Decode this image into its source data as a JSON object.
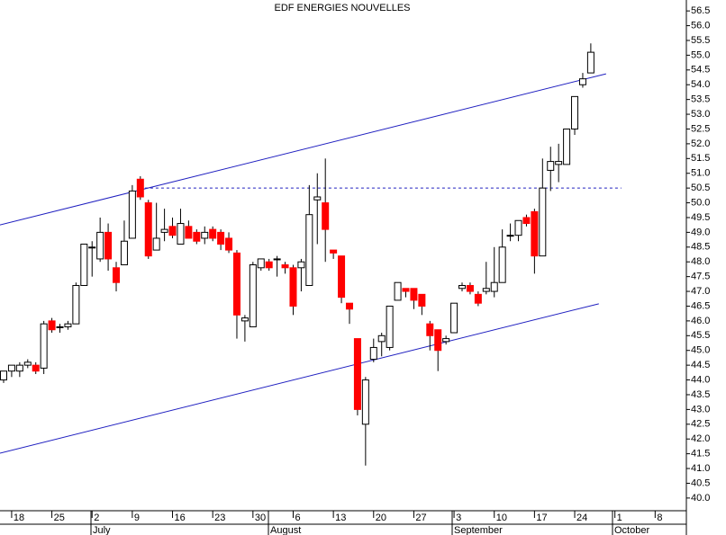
{
  "chart_data": {
    "type": "candlestick",
    "title": "EDF ENERGIES NOUVELLES",
    "categories": [
      null,
      "18",
      null,
      null,
      null,
      null,
      "25",
      null,
      null,
      null,
      null,
      "2",
      null,
      null,
      null,
      null,
      "9",
      null,
      null,
      null,
      null,
      "16",
      null,
      null,
      null,
      null,
      "23",
      null,
      null,
      null,
      null,
      "30",
      null,
      null,
      null,
      null,
      "6",
      null,
      null,
      null,
      null,
      "13",
      null,
      null,
      null,
      null,
      "20",
      null,
      null,
      null,
      null,
      "27",
      null,
      null,
      null,
      null,
      "3",
      null,
      null,
      null,
      null,
      "10",
      null,
      null,
      null,
      null,
      "17",
      null,
      null,
      null,
      null,
      "24",
      null,
      null,
      null,
      null,
      "1",
      null,
      null,
      null,
      null,
      "8"
    ],
    "months": [
      "July",
      "August",
      "September",
      "October"
    ],
    "open": [
      44.0,
      44.3,
      44.3,
      44.5,
      44.5,
      44.4,
      46.0,
      45.8,
      45.8,
      45.9,
      47.2,
      48.5,
      48.1,
      49.0,
      47.8,
      47.9,
      48.8,
      50.8,
      50.0,
      48.4,
      49.0,
      49.2,
      48.6,
      49.2,
      49.0,
      48.8,
      49.1,
      49.0,
      48.8,
      48.3,
      46.0,
      45.8,
      47.8,
      48.0,
      48.1,
      47.9,
      47.8,
      47.8,
      47.2,
      50.1,
      50.0,
      48.4,
      48.2,
      46.6,
      45.4,
      42.5,
      44.7,
      45.3,
      45.1,
      46.7,
      47.1,
      47.1,
      46.9,
      45.9,
      45.7,
      45.3,
      45.6,
      47.1,
      47.2,
      46.9,
      47.0,
      47.0,
      47.3,
      48.9,
      48.9,
      49.5,
      49.7,
      48.2,
      51.1,
      51.3,
      51.3,
      52.5,
      54.0,
      54.4,
      null,
      null,
      null,
      null,
      null,
      null,
      null,
      null
    ],
    "high": [
      44.3,
      44.5,
      44.6,
      44.7,
      44.6,
      46.0,
      46.1,
      45.9,
      46.0,
      47.3,
      48.6,
      48.7,
      49.5,
      49.3,
      48.0,
      49.4,
      50.6,
      50.9,
      50.1,
      50.0,
      49.8,
      49.5,
      49.8,
      49.4,
      49.1,
      49.2,
      49.2,
      49.1,
      49.0,
      48.4,
      46.2,
      48.0,
      48.1,
      48.1,
      48.2,
      48.0,
      47.9,
      48.1,
      50.6,
      51.0,
      51.5,
      48.4,
      48.2,
      46.6,
      45.4,
      44.1,
      45.4,
      45.6,
      46.5,
      47.3,
      47.1,
      47.1,
      46.9,
      46.0,
      45.7,
      45.5,
      46.6,
      47.3,
      47.3,
      47.0,
      48.0,
      48.5,
      49.1,
      49.3,
      49.4,
      49.6,
      49.8,
      51.5,
      51.9,
      52.0,
      52.5,
      53.6,
      54.4,
      55.4,
      null,
      null,
      null,
      null,
      null,
      null,
      null,
      null
    ],
    "low": [
      43.9,
      44.1,
      44.1,
      44.4,
      44.2,
      44.2,
      45.6,
      45.6,
      45.7,
      45.9,
      47.2,
      47.5,
      48.0,
      47.7,
      47.0,
      47.9,
      48.8,
      50.1,
      48.1,
      48.4,
      48.7,
      48.8,
      48.6,
      48.8,
      48.6,
      48.6,
      48.7,
      48.4,
      48.3,
      45.4,
      45.3,
      45.8,
      47.7,
      47.7,
      47.5,
      47.6,
      46.2,
      47.0,
      47.2,
      48.6,
      48.0,
      48.1,
      46.6,
      45.9,
      42.8,
      41.1,
      44.6,
      44.8,
      45.0,
      46.7,
      46.8,
      46.4,
      46.2,
      45.0,
      44.3,
      45.2,
      45.6,
      47.0,
      46.9,
      46.5,
      46.9,
      46.8,
      47.3,
      48.7,
      48.7,
      49.2,
      47.6,
      48.2,
      50.4,
      50.7,
      51.3,
      52.3,
      53.9,
      54.4,
      null,
      null,
      null,
      null,
      null,
      null,
      null,
      null
    ],
    "close": [
      44.3,
      44.5,
      44.5,
      44.6,
      44.3,
      45.9,
      45.7,
      45.8,
      45.9,
      47.2,
      48.6,
      48.5,
      49.0,
      48.1,
      47.3,
      48.7,
      50.4,
      50.2,
      48.2,
      48.8,
      49.1,
      48.9,
      49.3,
      48.8,
      48.7,
      49.0,
      48.8,
      48.6,
      48.4,
      46.2,
      46.1,
      47.9,
      48.1,
      47.8,
      48.1,
      47.8,
      46.5,
      48.0,
      49.6,
      50.2,
      49.1,
      48.3,
      46.8,
      46.4,
      43.0,
      44.0,
      45.1,
      45.5,
      46.5,
      47.3,
      47.0,
      46.7,
      46.5,
      45.5,
      45.0,
      45.4,
      46.6,
      47.2,
      47.0,
      46.6,
      47.1,
      47.3,
      48.5,
      48.9,
      49.4,
      49.3,
      48.2,
      50.5,
      51.4,
      51.4,
      52.5,
      53.6,
      54.2,
      55.1,
      null,
      null,
      null,
      null,
      null,
      null,
      null,
      null
    ],
    "up_color": "#ffffff",
    "down_color": "#ff0000",
    "trend_lines": [
      {
        "x": [
          -0.45,
          74.9
        ],
        "y": [
          49.25,
          54.37
        ],
        "color": "#2020c0",
        "dashed": false
      },
      {
        "x": [
          -0.45,
          74.0
        ],
        "y": [
          41.52,
          46.58
        ],
        "color": "#2020c0",
        "dashed": false
      },
      {
        "x": [
          16.9,
          76.8
        ],
        "y": [
          50.5,
          50.5
        ],
        "color": "#2020c0",
        "dashed": true
      }
    ],
    "ylim": [
      39.57,
      56.87
    ],
    "yticks": [
      {
        "value": 40,
        "label": "40.0"
      },
      40.5,
      {
        "value": 41,
        "label": "41.0"
      },
      41.5,
      {
        "value": 42,
        "label": "42.0"
      },
      42.5,
      {
        "value": 43,
        "label": "43.0"
      },
      43.5,
      {
        "value": 44,
        "label": "44.0"
      },
      44.5,
      {
        "value": 45,
        "label": "45.0"
      },
      45.5,
      {
        "value": 46,
        "label": "46.0"
      },
      46.5,
      {
        "value": 47,
        "label": "47.0"
      },
      47.5,
      {
        "value": 48,
        "label": "48.0"
      },
      48.5,
      {
        "value": 49,
        "label": "49.0"
      },
      49.5,
      {
        "value": 50,
        "label": "50.0"
      },
      50.5,
      {
        "value": 51,
        "label": "51.0"
      },
      51.5,
      {
        "value": 52,
        "label": "52.0"
      },
      52.5,
      {
        "value": 53,
        "label": "53.0"
      },
      53.5,
      {
        "value": 54,
        "label": "54.0"
      },
      54.5,
      {
        "value": 55,
        "label": "55.0"
      },
      55.5,
      {
        "value": 56,
        "label": "56.0"
      },
      56.5
    ]
  }
}
